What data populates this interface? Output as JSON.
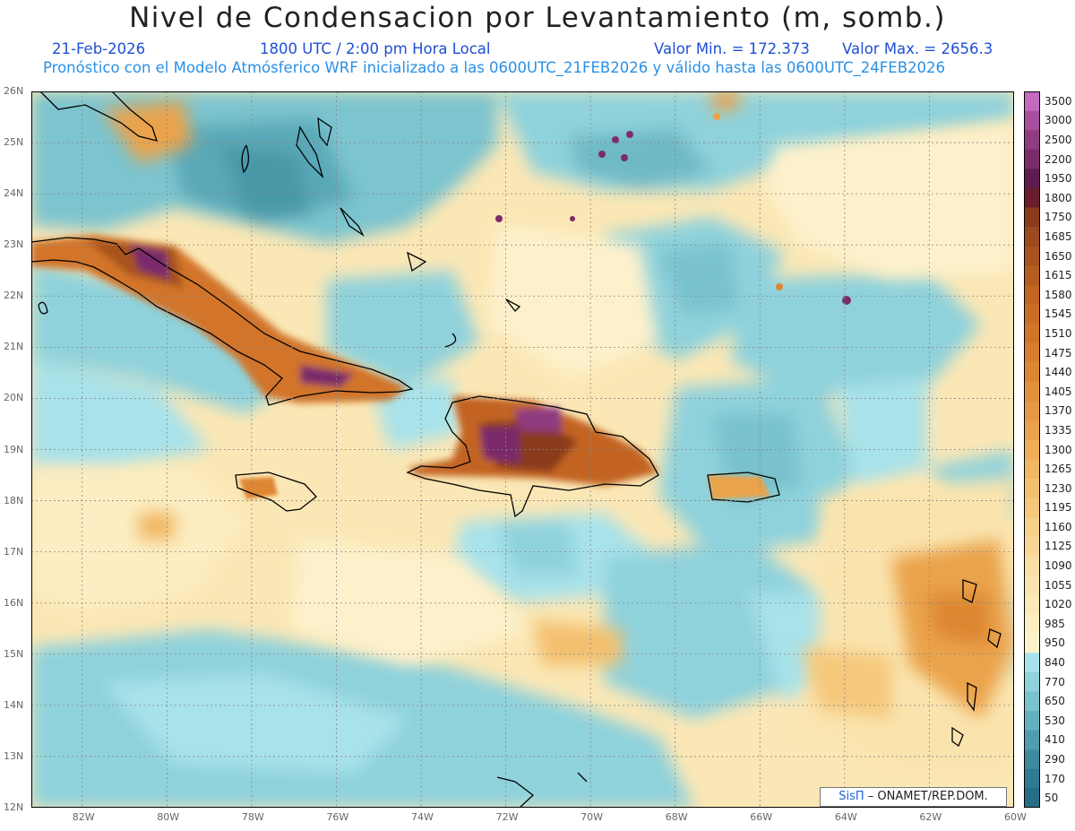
{
  "title": "Nivel de Condensacion por Levantamiento (m, somb.)",
  "date": "21-Feb-2026",
  "time": "1800 UTC / 2:00 pm Hora Local",
  "vmin": "Valor Min. = 172.373",
  "vmax": "Valor Max. = 2656.3",
  "forecast": "Pronóstico con el Modelo Atmósferico WRF inicializado a las 0600UTC_21FEB2026 y válido hasta las  0600UTC_24FEB2026",
  "credit": {
    "logo": "SisΠ",
    "text": "– ONAMET/REP.DOM."
  },
  "map": {
    "lat_labels": [
      "26N",
      "25N",
      "24N",
      "23N",
      "22N",
      "21N",
      "20N",
      "19N",
      "18N",
      "17N",
      "16N",
      "15N",
      "14N",
      "13N",
      "12N"
    ],
    "lon_labels": [
      "82W",
      "80W",
      "78W",
      "76W",
      "74W",
      "72W",
      "70W",
      "68W",
      "66W",
      "64W",
      "62W",
      "60W"
    ],
    "lat_range": [
      12,
      26
    ],
    "lon_range": [
      -83.2,
      -60
    ]
  },
  "colorbar": {
    "labels": [
      "3500",
      "3000",
      "2500",
      "2200",
      "1950",
      "1800",
      "1750",
      "1685",
      "1650",
      "1615",
      "1580",
      "1545",
      "1510",
      "1475",
      "1440",
      "1405",
      "1370",
      "1335",
      "1300",
      "1265",
      "1230",
      "1195",
      "1160",
      "1125",
      "1090",
      "1055",
      "1020",
      "985",
      "950",
      "840",
      "770",
      "650",
      "530",
      "410",
      "290",
      "170",
      "50"
    ],
    "colors": [
      "#c36bc0",
      "#a8509d",
      "#8f3b80",
      "#7a2c6b",
      "#5f1b4e",
      "#6a1e2c",
      "#8a3a1a",
      "#9a4a1c",
      "#a8531e",
      "#b55c20",
      "#c26422",
      "#cb6c25",
      "#d27529",
      "#d97e2d",
      "#de8733",
      "#e2903a",
      "#e69942",
      "#eaa34c",
      "#eead56",
      "#f1b762",
      "#f3c06e",
      "#f5c87c",
      "#f7d08a",
      "#f8d796",
      "#f9dea3",
      "#fae4ae",
      "#fbe9b8",
      "#fcedc2",
      "#fdf1cc",
      "#a8e2ea",
      "#8fd2dc",
      "#78c1cd",
      "#62afbd",
      "#4e9dae",
      "#3d8b9f",
      "#2e7a91",
      "#246d85"
    ]
  }
}
